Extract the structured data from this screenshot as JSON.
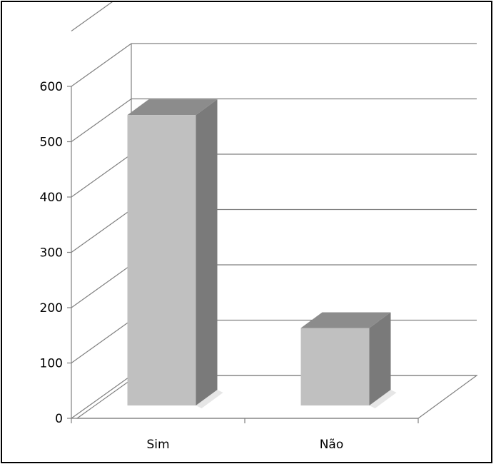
{
  "chart_data": {
    "type": "bar",
    "categories": [
      "Sim",
      "Não"
    ],
    "values": [
      525,
      140
    ],
    "ylim": [
      0,
      600
    ],
    "y_ticks": [
      "0",
      "100",
      "200",
      "300",
      "400",
      "500",
      "600"
    ],
    "grid": true,
    "three_d": true,
    "colors": {
      "bar_front": "#c0c0c0",
      "bar_side": "#7a7a7a",
      "bar_top": "#8c8c8c",
      "grid": "#808080",
      "floor": "#ffffff"
    }
  }
}
